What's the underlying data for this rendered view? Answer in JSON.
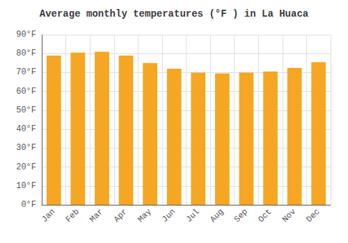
{
  "chart_data": {
    "type": "bar",
    "title": "Average monthly temperatures (°F ) in La Huaca",
    "categories": [
      "Jan",
      "Feb",
      "Mar",
      "Apr",
      "May",
      "Jun",
      "Jul",
      "Aug",
      "Sep",
      "Oct",
      "Nov",
      "Dec"
    ],
    "values": [
      79,
      80.5,
      81,
      79,
      75,
      72,
      70,
      69.5,
      70,
      70.5,
      72.5,
      75.5
    ],
    "color": "#F5A623",
    "ylim": [
      0,
      90
    ],
    "yticks": [
      {
        "value": 0,
        "label": "0°F"
      },
      {
        "value": 10,
        "label": "10°F"
      },
      {
        "value": 20,
        "label": "20°F"
      },
      {
        "value": 30,
        "label": "30°F"
      },
      {
        "value": 40,
        "label": "40°F"
      },
      {
        "value": 50,
        "label": "50°F"
      },
      {
        "value": 60,
        "label": "60°F"
      },
      {
        "value": 70,
        "label": "70°F"
      },
      {
        "value": 80,
        "label": "80°F"
      },
      {
        "value": 90,
        "label": "90°F"
      }
    ],
    "grid": true
  }
}
